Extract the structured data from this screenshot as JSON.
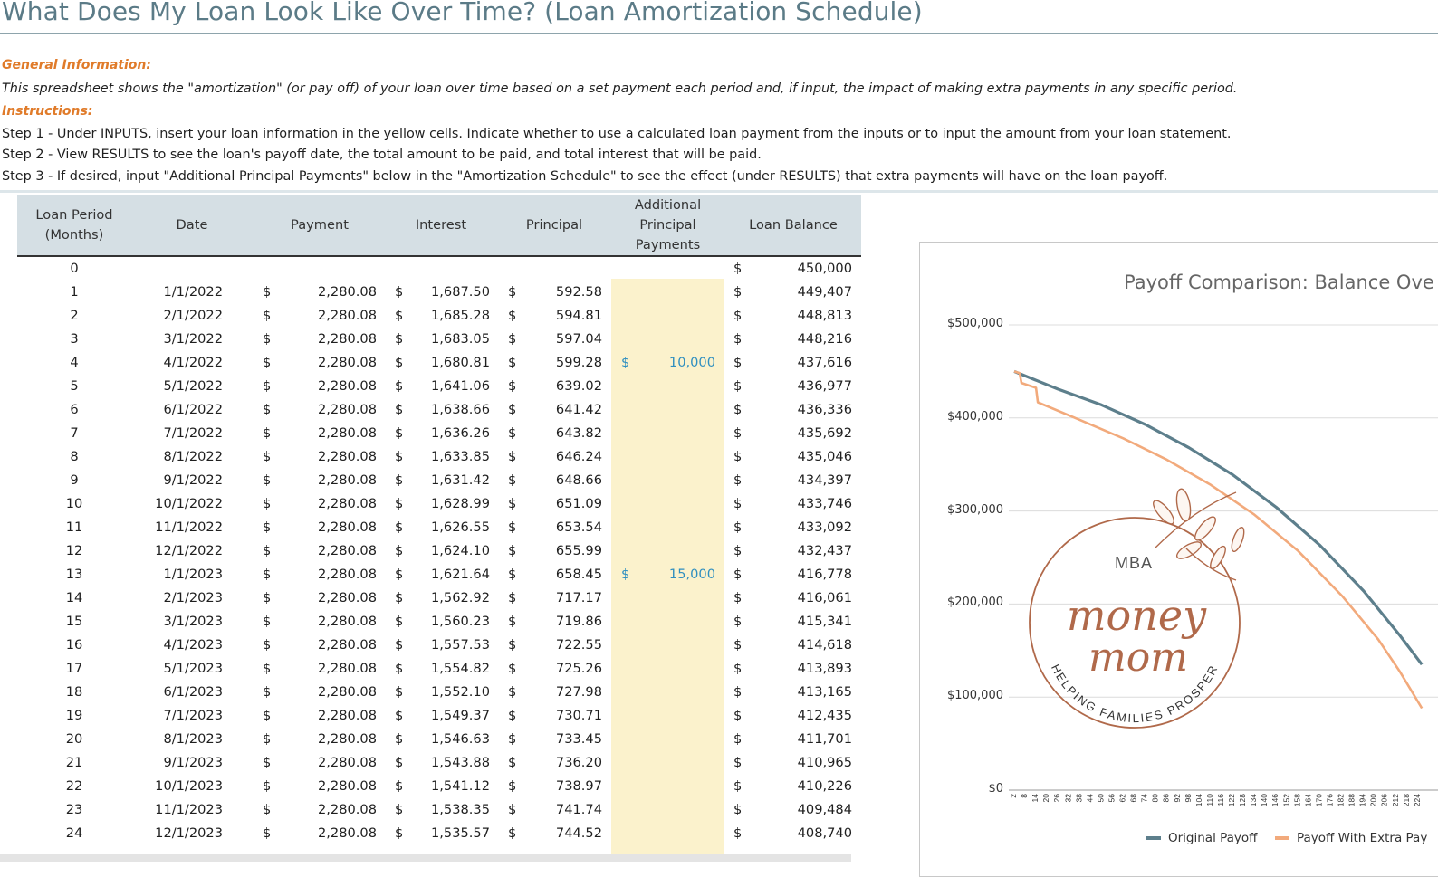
{
  "title": "What Does My Loan Look Like Over Time? (Loan Amortization Schedule)",
  "general_label": "General Information:",
  "general_text": "This spreadsheet shows the \"amortization\" (or pay off) of your loan over time based on a set payment each period and, if input, the impact of making extra payments in any specific period.",
  "instructions_label": "Instructions:",
  "steps": [
    "Step 1 - Under INPUTS, insert your loan information in the yellow cells. Indicate whether to use a calculated loan payment from the inputs or to input the amount from your loan statement.",
    "Step 2 - View RESULTS to see the loan's payoff date, the total amount to be paid, and total interest that will be paid.",
    "Step 3 - If desired, input \"Additional Principal Payments\" below in the \"Amortization Schedule\" to see the effect (under RESULTS) that extra payments will have on the loan payoff."
  ],
  "table": {
    "headers": {
      "period_1": "Loan Period",
      "period_2": "(Months)",
      "date": "Date",
      "payment": "Payment",
      "interest": "Interest",
      "principal": "Principal",
      "additional_1": "Additional",
      "additional_2": "Principal",
      "additional_3": "Payments",
      "balance": "Loan Balance"
    },
    "currency": "$",
    "rows": [
      {
        "period": "0",
        "date": "",
        "payment": "",
        "interest": "",
        "principal": "",
        "additional": "",
        "balance": "450,000"
      },
      {
        "period": "1",
        "date": "1/1/2022",
        "payment": "2,280.08",
        "interest": "1,687.50",
        "principal": "592.58",
        "additional": "",
        "balance": "449,407"
      },
      {
        "period": "2",
        "date": "2/1/2022",
        "payment": "2,280.08",
        "interest": "1,685.28",
        "principal": "594.81",
        "additional": "",
        "balance": "448,813"
      },
      {
        "period": "3",
        "date": "3/1/2022",
        "payment": "2,280.08",
        "interest": "1,683.05",
        "principal": "597.04",
        "additional": "",
        "balance": "448,216"
      },
      {
        "period": "4",
        "date": "4/1/2022",
        "payment": "2,280.08",
        "interest": "1,680.81",
        "principal": "599.28",
        "additional": "10,000",
        "balance": "437,616"
      },
      {
        "period": "5",
        "date": "5/1/2022",
        "payment": "2,280.08",
        "interest": "1,641.06",
        "principal": "639.02",
        "additional": "",
        "balance": "436,977"
      },
      {
        "period": "6",
        "date": "6/1/2022",
        "payment": "2,280.08",
        "interest": "1,638.66",
        "principal": "641.42",
        "additional": "",
        "balance": "436,336"
      },
      {
        "period": "7",
        "date": "7/1/2022",
        "payment": "2,280.08",
        "interest": "1,636.26",
        "principal": "643.82",
        "additional": "",
        "balance": "435,692"
      },
      {
        "period": "8",
        "date": "8/1/2022",
        "payment": "2,280.08",
        "interest": "1,633.85",
        "principal": "646.24",
        "additional": "",
        "balance": "435,046"
      },
      {
        "period": "9",
        "date": "9/1/2022",
        "payment": "2,280.08",
        "interest": "1,631.42",
        "principal": "648.66",
        "additional": "",
        "balance": "434,397"
      },
      {
        "period": "10",
        "date": "10/1/2022",
        "payment": "2,280.08",
        "interest": "1,628.99",
        "principal": "651.09",
        "additional": "",
        "balance": "433,746"
      },
      {
        "period": "11",
        "date": "11/1/2022",
        "payment": "2,280.08",
        "interest": "1,626.55",
        "principal": "653.54",
        "additional": "",
        "balance": "433,092"
      },
      {
        "period": "12",
        "date": "12/1/2022",
        "payment": "2,280.08",
        "interest": "1,624.10",
        "principal": "655.99",
        "additional": "",
        "balance": "432,437"
      },
      {
        "period": "13",
        "date": "1/1/2023",
        "payment": "2,280.08",
        "interest": "1,621.64",
        "principal": "658.45",
        "additional": "15,000",
        "balance": "416,778"
      },
      {
        "period": "14",
        "date": "2/1/2023",
        "payment": "2,280.08",
        "interest": "1,562.92",
        "principal": "717.17",
        "additional": "",
        "balance": "416,061"
      },
      {
        "period": "15",
        "date": "3/1/2023",
        "payment": "2,280.08",
        "interest": "1,560.23",
        "principal": "719.86",
        "additional": "",
        "balance": "415,341"
      },
      {
        "period": "16",
        "date": "4/1/2023",
        "payment": "2,280.08",
        "interest": "1,557.53",
        "principal": "722.55",
        "additional": "",
        "balance": "414,618"
      },
      {
        "period": "17",
        "date": "5/1/2023",
        "payment": "2,280.08",
        "interest": "1,554.82",
        "principal": "725.26",
        "additional": "",
        "balance": "413,893"
      },
      {
        "period": "18",
        "date": "6/1/2023",
        "payment": "2,280.08",
        "interest": "1,552.10",
        "principal": "727.98",
        "additional": "",
        "balance": "413,165"
      },
      {
        "period": "19",
        "date": "7/1/2023",
        "payment": "2,280.08",
        "interest": "1,549.37",
        "principal": "730.71",
        "additional": "",
        "balance": "412,435"
      },
      {
        "period": "20",
        "date": "8/1/2023",
        "payment": "2,280.08",
        "interest": "1,546.63",
        "principal": "733.45",
        "additional": "",
        "balance": "411,701"
      },
      {
        "period": "21",
        "date": "9/1/2023",
        "payment": "2,280.08",
        "interest": "1,543.88",
        "principal": "736.20",
        "additional": "",
        "balance": "410,965"
      },
      {
        "period": "22",
        "date": "10/1/2023",
        "payment": "2,280.08",
        "interest": "1,541.12",
        "principal": "738.97",
        "additional": "",
        "balance": "410,226"
      },
      {
        "period": "23",
        "date": "11/1/2023",
        "payment": "2,280.08",
        "interest": "1,538.35",
        "principal": "741.74",
        "additional": "",
        "balance": "409,484"
      },
      {
        "period": "24",
        "date": "12/1/2023",
        "payment": "2,280.08",
        "interest": "1,535.57",
        "principal": "744.52",
        "additional": "",
        "balance": "408,740"
      }
    ]
  },
  "logo": {
    "top": "MBA",
    "script_1": "money",
    "script_2": "mom",
    "ring": "HELPING FAMILIES PROSPER",
    "color": "#b0694a"
  },
  "chart_data": {
    "type": "line",
    "title": "Payoff Comparison: Balance Ove",
    "y_ticks": [
      "$500,000",
      "$400,000",
      "$300,000",
      "$200,000",
      "$100,000",
      "$0"
    ],
    "ylim": [
      0,
      500000
    ],
    "x_ticks": [
      "2",
      "8",
      "14",
      "20",
      "26",
      "32",
      "38",
      "44",
      "50",
      "56",
      "62",
      "68",
      "74",
      "80",
      "86",
      "92",
      "98",
      "104",
      "110",
      "116",
      "122",
      "128",
      "134",
      "140",
      "146",
      "152",
      "158",
      "164",
      "170",
      "176",
      "182",
      "188",
      "194",
      "200",
      "206",
      "212",
      "218",
      "224"
    ],
    "grid": true,
    "legend_position": "bottom",
    "series": [
      {
        "name": "Original Payoff",
        "color": "#5d7f8c",
        "x": [
          0,
          24,
          48,
          72,
          96,
          120,
          144,
          168,
          192,
          212,
          224
        ],
        "y": [
          450000,
          431000,
          414000,
          393000,
          368000,
          339000,
          304000,
          263000,
          214000,
          166000,
          135000
        ]
      },
      {
        "name": "Payoff With Extra Pay",
        "color": "#f2aa7c",
        "x": [
          0,
          3,
          4,
          12,
          13,
          36,
          60,
          84,
          108,
          132,
          156,
          180,
          200,
          212,
          224
        ],
        "y": [
          450000,
          448200,
          437600,
          432400,
          416800,
          398000,
          378000,
          355000,
          328000,
          296000,
          257000,
          209000,
          162000,
          127000,
          88000
        ]
      }
    ]
  }
}
